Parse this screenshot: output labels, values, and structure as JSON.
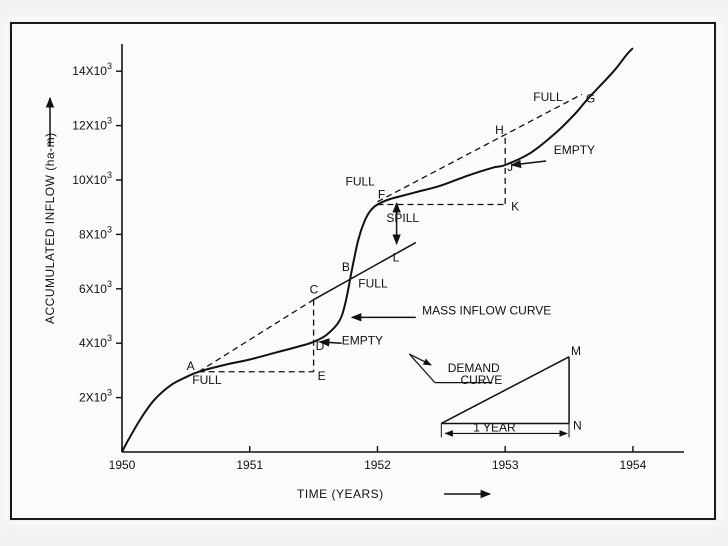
{
  "colors": {
    "ink": "#111111",
    "paper": "#fbfbfb",
    "background": "#f2f2f2"
  },
  "chart_data": {
    "type": "line",
    "title": "",
    "xlabel": "TIME  (YEARS)",
    "ylabel": "ACCUMULATED  INFLOW  (ha-m)",
    "xlim": [
      1950,
      1954.4
    ],
    "ylim": [
      0,
      15000
    ],
    "grid": false,
    "x_ticks": [
      {
        "value": 1950,
        "label": "1950"
      },
      {
        "value": 1951,
        "label": "1951"
      },
      {
        "value": 1952,
        "label": "1952"
      },
      {
        "value": 1953,
        "label": "1953"
      },
      {
        "value": 1954,
        "label": "1954"
      }
    ],
    "y_ticks": [
      {
        "value": 2000,
        "label": "2X10",
        "exp": "3"
      },
      {
        "value": 4000,
        "label": "4X10",
        "exp": "3"
      },
      {
        "value": 6000,
        "label": "6X10",
        "exp": "3"
      },
      {
        "value": 8000,
        "label": "8X10",
        "exp": "3"
      },
      {
        "value": 10000,
        "label": "10X10",
        "exp": "3"
      },
      {
        "value": 12000,
        "label": "12X10",
        "exp": "3"
      },
      {
        "value": 14000,
        "label": "14X10",
        "exp": "3"
      }
    ],
    "series": [
      {
        "name": "MASS INFLOW CURVE",
        "style": "solid",
        "points": [
          [
            1950.0,
            0
          ],
          [
            1950.05,
            450
          ],
          [
            1950.15,
            1250
          ],
          [
            1950.25,
            1900
          ],
          [
            1950.38,
            2450
          ],
          [
            1950.5,
            2750
          ],
          [
            1950.6,
            2950
          ],
          [
            1950.8,
            3200
          ],
          [
            1951.0,
            3400
          ],
          [
            1951.2,
            3650
          ],
          [
            1951.4,
            3900
          ],
          [
            1951.5,
            4050
          ],
          [
            1951.6,
            4300
          ],
          [
            1951.7,
            4800
          ],
          [
            1951.75,
            5500
          ],
          [
            1951.8,
            6700
          ],
          [
            1951.85,
            7800
          ],
          [
            1951.9,
            8500
          ],
          [
            1951.95,
            8900
          ],
          [
            1952.0,
            9100
          ],
          [
            1952.1,
            9300
          ],
          [
            1952.3,
            9550
          ],
          [
            1952.5,
            9800
          ],
          [
            1952.7,
            10150
          ],
          [
            1952.9,
            10450
          ],
          [
            1953.0,
            10550
          ],
          [
            1953.2,
            11000
          ],
          [
            1953.4,
            11750
          ],
          [
            1953.55,
            12450
          ],
          [
            1953.65,
            13000
          ],
          [
            1953.85,
            14000
          ],
          [
            1953.95,
            14600
          ],
          [
            1954.0,
            14850
          ]
        ]
      },
      {
        "name": "",
        "style": "dashed",
        "segments": [
          [
            [
              1950.6,
              2950
            ],
            [
              1951.5,
              5600
            ]
          ],
          [
            [
              1951.5,
              5600
            ],
            [
              1951.5,
              2950
            ]
          ],
          [
            [
              1950.6,
              2950
            ],
            [
              1951.5,
              2950
            ]
          ],
          [
            [
              1952.0,
              9200
            ],
            [
              1953.6,
              13150
            ]
          ],
          [
            [
              1953.0,
              11550
            ],
            [
              1953.0,
              9100
            ]
          ],
          [
            [
              1952.0,
              9100
            ],
            [
              1953.0,
              9100
            ]
          ]
        ]
      },
      {
        "name": "",
        "style": "solid",
        "segments": [
          [
            [
              1951.5,
              5600
            ],
            [
              1952.3,
              7700
            ]
          ]
        ]
      }
    ],
    "points": [
      {
        "label": "A",
        "x": 1950.6,
        "y": 2950
      },
      {
        "label": "B",
        "x": 1951.8,
        "y": 6500
      },
      {
        "label": "C",
        "x": 1951.5,
        "y": 5600
      },
      {
        "label": "D",
        "x": 1951.5,
        "y": 4050
      },
      {
        "label": "E",
        "x": 1951.5,
        "y": 2950
      },
      {
        "label": "F",
        "x": 1952.05,
        "y": 9250
      },
      {
        "label": "G",
        "x": 1953.6,
        "y": 13000
      },
      {
        "label": "H",
        "x": 1953.0,
        "y": 11550
      },
      {
        "label": "J",
        "x": 1953.0,
        "y": 10550
      },
      {
        "label": "K",
        "x": 1953.0,
        "y": 9100
      },
      {
        "label": "L",
        "x": 1952.15,
        "y": 7600
      },
      {
        "label": "M",
        "x": 1953.5,
        "y": 3500
      },
      {
        "label": "N",
        "x": 1953.5,
        "y": 1050
      }
    ],
    "annotations": [
      {
        "text": "FULL",
        "x": 1950.55,
        "y": 2500
      },
      {
        "text": "EMPTY",
        "x": 1951.72,
        "y": 3950
      },
      {
        "text": "FULL",
        "x": 1951.85,
        "y": 6050
      },
      {
        "text": "FULL",
        "x": 1951.75,
        "y": 9800
      },
      {
        "text": "SPILL",
        "x": 1952.07,
        "y": 8450
      },
      {
        "text": "EMPTY",
        "x": 1953.38,
        "y": 10950
      },
      {
        "text": "FULL",
        "x": 1953.22,
        "y": 12900
      },
      {
        "text": "MASS INFLOW CURVE",
        "x": 1952.35,
        "y": 5050
      },
      {
        "text": "DEMAND",
        "x": 1952.55,
        "y": 2950
      },
      {
        "text": "CURVE",
        "x": 1952.65,
        "y": 2500
      },
      {
        "text": "1 YEAR",
        "x": 1952.75,
        "y": 750
      }
    ],
    "demand_curve": {
      "x": [
        1952.5,
        1953.5
      ],
      "y": [
        1050,
        3500
      ],
      "base_label": "1 YEAR"
    }
  }
}
